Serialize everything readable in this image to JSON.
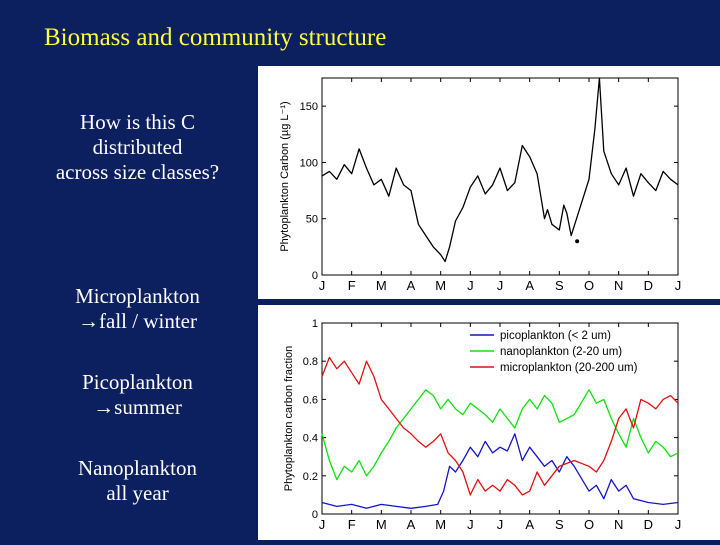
{
  "slide": {
    "title": "Biomass and community structure",
    "question": [
      "How is this C",
      "distributed",
      "across size classes?"
    ],
    "notes": [
      {
        "label": "Microplankton",
        "detail": "fall / winter"
      },
      {
        "label": "Picoplankton",
        "detail": "summer"
      },
      {
        "label": "Nanoplankton",
        "detail": "all year"
      }
    ],
    "arrow_glyph": "→"
  },
  "chart_data": [
    {
      "type": "line",
      "ylabel": "Phytoplankton Carbon (µg L⁻¹)",
      "xlabel": "",
      "x_tick_labels": [
        "J",
        "F",
        "M",
        "A",
        "M",
        "J",
        "J",
        "A",
        "S",
        "O",
        "N",
        "D",
        "J"
      ],
      "x_range_months": [
        0,
        12
      ],
      "ylim": [
        0,
        175
      ],
      "yticks": [
        0,
        50,
        100,
        150
      ],
      "series": [
        {
          "name": "",
          "color": "#000000",
          "points": [
            [
              0,
              88
            ],
            [
              0.25,
              92
            ],
            [
              0.5,
              85
            ],
            [
              0.75,
              98
            ],
            [
              1.0,
              90
            ],
            [
              1.25,
              112
            ],
            [
              1.5,
              95
            ],
            [
              1.75,
              80
            ],
            [
              2.0,
              85
            ],
            [
              2.25,
              70
            ],
            [
              2.5,
              95
            ],
            [
              2.75,
              80
            ],
            [
              3.0,
              75
            ],
            [
              3.25,
              45
            ],
            [
              3.5,
              35
            ],
            [
              3.75,
              25
            ],
            [
              4.0,
              18
            ],
            [
              4.15,
              12
            ],
            [
              4.3,
              25
            ],
            [
              4.5,
              48
            ],
            [
              4.75,
              60
            ],
            [
              5.0,
              78
            ],
            [
              5.25,
              88
            ],
            [
              5.5,
              72
            ],
            [
              5.75,
              80
            ],
            [
              6.0,
              95
            ],
            [
              6.25,
              75
            ],
            [
              6.5,
              82
            ],
            [
              6.75,
              115
            ],
            [
              7.0,
              105
            ],
            [
              7.25,
              90
            ],
            [
              7.5,
              50
            ],
            [
              7.6,
              58
            ],
            [
              7.75,
              45
            ],
            [
              8.0,
              40
            ],
            [
              8.15,
              62
            ],
            [
              8.25,
              55
            ],
            [
              8.4,
              35
            ],
            [
              9.0,
              85
            ],
            [
              9.2,
              130
            ],
            [
              9.35,
              175
            ],
            [
              9.5,
              110
            ],
            [
              9.75,
              90
            ],
            [
              10.0,
              80
            ],
            [
              10.25,
              95
            ],
            [
              10.5,
              70
            ],
            [
              10.75,
              90
            ],
            [
              11.0,
              82
            ],
            [
              11.25,
              75
            ],
            [
              11.5,
              92
            ],
            [
              11.75,
              85
            ],
            [
              12.0,
              80
            ]
          ]
        }
      ],
      "annotations": [
        {
          "x": 8.6,
          "y": 30,
          "marker": "dot"
        }
      ]
    },
    {
      "type": "line",
      "ylabel": "Phytoplankton carbon fraction",
      "xlabel": "",
      "x_tick_labels": [
        "J",
        "F",
        "M",
        "A",
        "M",
        "J",
        "J",
        "A",
        "S",
        "O",
        "N",
        "D",
        "J"
      ],
      "x_range_months": [
        0,
        12
      ],
      "ylim": [
        0,
        1
      ],
      "yticks": [
        0,
        0.2,
        0.4,
        0.6,
        0.8,
        1
      ],
      "legend_position": "top-right",
      "series": [
        {
          "name": "picoplankton (< 2 um)",
          "color": "#1515c8",
          "points": [
            [
              0,
              0.06
            ],
            [
              0.5,
              0.04
            ],
            [
              1.0,
              0.05
            ],
            [
              1.5,
              0.03
            ],
            [
              2.0,
              0.05
            ],
            [
              2.5,
              0.04
            ],
            [
              3.0,
              0.03
            ],
            [
              3.5,
              0.04
            ],
            [
              3.9,
              0.05
            ],
            [
              4.1,
              0.12
            ],
            [
              4.3,
              0.25
            ],
            [
              4.5,
              0.22
            ],
            [
              4.75,
              0.28
            ],
            [
              5.0,
              0.35
            ],
            [
              5.25,
              0.3
            ],
            [
              5.5,
              0.38
            ],
            [
              5.75,
              0.32
            ],
            [
              6.0,
              0.35
            ],
            [
              6.25,
              0.33
            ],
            [
              6.5,
              0.42
            ],
            [
              6.75,
              0.28
            ],
            [
              7.0,
              0.35
            ],
            [
              7.25,
              0.3
            ],
            [
              7.5,
              0.25
            ],
            [
              7.75,
              0.28
            ],
            [
              8.0,
              0.22
            ],
            [
              8.25,
              0.3
            ],
            [
              8.5,
              0.25
            ],
            [
              9.0,
              0.12
            ],
            [
              9.25,
              0.15
            ],
            [
              9.5,
              0.08
            ],
            [
              9.75,
              0.18
            ],
            [
              10.0,
              0.12
            ],
            [
              10.25,
              0.15
            ],
            [
              10.5,
              0.08
            ],
            [
              11.0,
              0.06
            ],
            [
              11.5,
              0.05
            ],
            [
              12.0,
              0.06
            ]
          ]
        },
        {
          "name": "nanoplankton (2-20 um)",
          "color": "#10e010",
          "points": [
            [
              0,
              0.42
            ],
            [
              0.25,
              0.28
            ],
            [
              0.5,
              0.18
            ],
            [
              0.75,
              0.25
            ],
            [
              1.0,
              0.22
            ],
            [
              1.25,
              0.28
            ],
            [
              1.5,
              0.2
            ],
            [
              1.75,
              0.25
            ],
            [
              2.0,
              0.32
            ],
            [
              2.25,
              0.38
            ],
            [
              2.5,
              0.45
            ],
            [
              2.75,
              0.5
            ],
            [
              3.0,
              0.55
            ],
            [
              3.25,
              0.6
            ],
            [
              3.5,
              0.65
            ],
            [
              3.75,
              0.62
            ],
            [
              4.0,
              0.55
            ],
            [
              4.25,
              0.6
            ],
            [
              4.5,
              0.55
            ],
            [
              4.75,
              0.52
            ],
            [
              5.0,
              0.58
            ],
            [
              5.25,
              0.55
            ],
            [
              5.5,
              0.52
            ],
            [
              5.75,
              0.48
            ],
            [
              6.0,
              0.55
            ],
            [
              6.25,
              0.5
            ],
            [
              6.5,
              0.45
            ],
            [
              6.75,
              0.55
            ],
            [
              7.0,
              0.6
            ],
            [
              7.25,
              0.55
            ],
            [
              7.5,
              0.62
            ],
            [
              7.75,
              0.58
            ],
            [
              8.0,
              0.48
            ],
            [
              8.5,
              0.52
            ],
            [
              9.0,
              0.65
            ],
            [
              9.25,
              0.58
            ],
            [
              9.5,
              0.6
            ],
            [
              9.75,
              0.5
            ],
            [
              10.0,
              0.42
            ],
            [
              10.25,
              0.35
            ],
            [
              10.5,
              0.5
            ],
            [
              10.75,
              0.4
            ],
            [
              11.0,
              0.32
            ],
            [
              11.25,
              0.38
            ],
            [
              11.5,
              0.35
            ],
            [
              11.75,
              0.3
            ],
            [
              12.0,
              0.32
            ]
          ]
        },
        {
          "name": "microplankton (20-200 um)",
          "color": "#e01010",
          "points": [
            [
              0,
              0.72
            ],
            [
              0.25,
              0.82
            ],
            [
              0.5,
              0.76
            ],
            [
              0.75,
              0.8
            ],
            [
              1.0,
              0.74
            ],
            [
              1.25,
              0.68
            ],
            [
              1.5,
              0.8
            ],
            [
              1.75,
              0.72
            ],
            [
              2.0,
              0.6
            ],
            [
              2.25,
              0.55
            ],
            [
              2.5,
              0.5
            ],
            [
              2.75,
              0.45
            ],
            [
              3.0,
              0.42
            ],
            [
              3.25,
              0.38
            ],
            [
              3.5,
              0.35
            ],
            [
              3.75,
              0.38
            ],
            [
              4.0,
              0.42
            ],
            [
              4.25,
              0.32
            ],
            [
              4.5,
              0.28
            ],
            [
              4.75,
              0.22
            ],
            [
              5.0,
              0.1
            ],
            [
              5.25,
              0.18
            ],
            [
              5.5,
              0.12
            ],
            [
              5.75,
              0.15
            ],
            [
              6.0,
              0.12
            ],
            [
              6.25,
              0.18
            ],
            [
              6.5,
              0.15
            ],
            [
              6.75,
              0.1
            ],
            [
              7.0,
              0.12
            ],
            [
              7.25,
              0.22
            ],
            [
              7.5,
              0.15
            ],
            [
              7.75,
              0.2
            ],
            [
              8.0,
              0.25
            ],
            [
              8.5,
              0.28
            ],
            [
              9.0,
              0.25
            ],
            [
              9.25,
              0.22
            ],
            [
              9.5,
              0.28
            ],
            [
              9.75,
              0.38
            ],
            [
              10.0,
              0.5
            ],
            [
              10.25,
              0.55
            ],
            [
              10.5,
              0.45
            ],
            [
              10.75,
              0.6
            ],
            [
              11.0,
              0.58
            ],
            [
              11.25,
              0.55
            ],
            [
              11.5,
              0.6
            ],
            [
              11.75,
              0.62
            ],
            [
              12.0,
              0.58
            ]
          ]
        }
      ]
    }
  ]
}
